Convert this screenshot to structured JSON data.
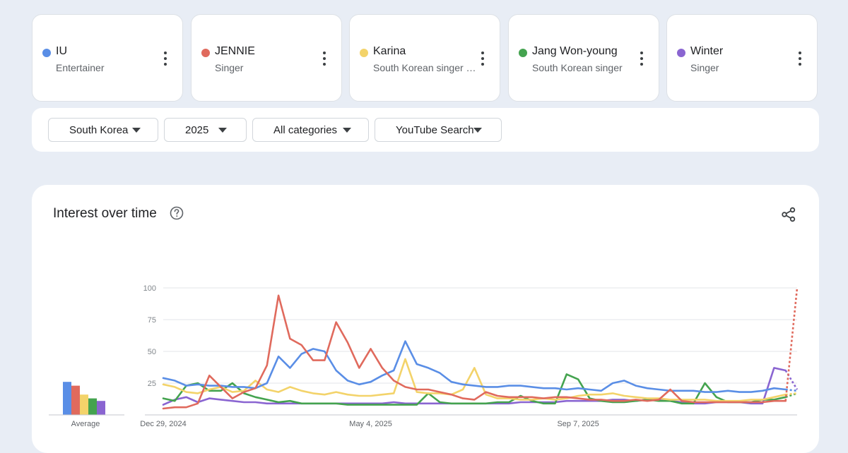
{
  "terms": [
    {
      "name": "IU",
      "subtitle": "Entertainer",
      "color": "#5a8ee6"
    },
    {
      "name": "JENNIE",
      "subtitle": "Singer",
      "color": "#e06a5d"
    },
    {
      "name": "Karina",
      "subtitle": "South Korean singer …",
      "color": "#f3d36a"
    },
    {
      "name": "Jang Won-young",
      "subtitle": "South Korean singer",
      "color": "#44a34f"
    },
    {
      "name": "Winter",
      "subtitle": "Singer",
      "color": "#8a65d1"
    }
  ],
  "filters": {
    "region": "South Korea",
    "period": "2025",
    "category": "All categories",
    "property": "YouTube Search"
  },
  "chart": {
    "title": "Interest over time",
    "average_label": "Average"
  },
  "chart_data": {
    "type": "line",
    "ylim": [
      0,
      100
    ],
    "yticks": [
      25,
      50,
      75,
      100
    ],
    "x_tick_labels": [
      "Dec 29, 2024",
      "May 4, 2025",
      "Sep 7, 2025"
    ],
    "x_tick_index": [
      0,
      18,
      36
    ],
    "partial_last_point": true,
    "grid": true,
    "series": [
      {
        "name": "IU",
        "color": "#5a8ee6",
        "average": 26,
        "values": [
          29,
          27,
          23,
          24,
          23,
          23,
          22,
          22,
          21,
          25,
          46,
          37,
          48,
          52,
          50,
          35,
          27,
          24,
          26,
          31,
          35,
          58,
          40,
          37,
          33,
          26,
          24,
          23,
          22,
          22,
          23,
          23,
          22,
          21,
          21,
          20,
          21,
          20,
          19,
          25,
          27,
          23,
          21,
          20,
          19,
          19,
          19,
          18,
          18,
          19,
          18,
          18,
          19,
          21,
          20,
          19
        ]
      },
      {
        "name": "JENNIE",
        "color": "#e06a5d",
        "average": 23,
        "values": [
          5,
          6,
          6,
          9,
          31,
          22,
          13,
          18,
          21,
          39,
          94,
          60,
          55,
          43,
          43,
          73,
          57,
          37,
          52,
          37,
          27,
          22,
          20,
          20,
          18,
          16,
          13,
          12,
          18,
          15,
          14,
          14,
          14,
          13,
          14,
          14,
          13,
          12,
          12,
          11,
          11,
          12,
          11,
          12,
          20,
          11,
          10,
          10,
          10,
          10,
          10,
          10,
          10,
          11,
          11,
          100
        ]
      },
      {
        "name": "Karina",
        "color": "#f3d36a",
        "average": 16,
        "values": [
          24,
          22,
          18,
          17,
          20,
          22,
          18,
          19,
          27,
          20,
          18,
          22,
          19,
          17,
          16,
          18,
          16,
          15,
          15,
          16,
          17,
          44,
          18,
          17,
          17,
          16,
          20,
          37,
          16,
          13,
          13,
          12,
          12,
          13,
          12,
          13,
          15,
          16,
          16,
          17,
          15,
          14,
          13,
          13,
          12,
          12,
          12,
          12,
          11,
          11,
          11,
          12,
          12,
          14,
          16,
          17
        ]
      },
      {
        "name": "Jang Won-young",
        "color": "#44a34f",
        "average": 13,
        "values": [
          13,
          11,
          23,
          25,
          19,
          19,
          25,
          17,
          14,
          12,
          10,
          11,
          9,
          9,
          9,
          9,
          8,
          8,
          8,
          8,
          8,
          8,
          8,
          17,
          10,
          9,
          9,
          9,
          9,
          10,
          10,
          15,
          11,
          9,
          9,
          32,
          28,
          13,
          11,
          10,
          10,
          11,
          12,
          11,
          11,
          9,
          9,
          25,
          14,
          10,
          10,
          10,
          12,
          12,
          14,
          17
        ]
      },
      {
        "name": "Winter",
        "color": "#8a65d1",
        "average": 11,
        "values": [
          8,
          12,
          14,
          10,
          13,
          12,
          11,
          10,
          10,
          9,
          9,
          9,
          9,
          9,
          9,
          9,
          9,
          9,
          9,
          9,
          10,
          9,
          9,
          9,
          9,
          9,
          9,
          9,
          9,
          9,
          9,
          10,
          10,
          10,
          10,
          11,
          11,
          11,
          11,
          12,
          12,
          11,
          12,
          12,
          11,
          10,
          9,
          9,
          10,
          10,
          10,
          9,
          9,
          37,
          35,
          20
        ]
      }
    ]
  }
}
